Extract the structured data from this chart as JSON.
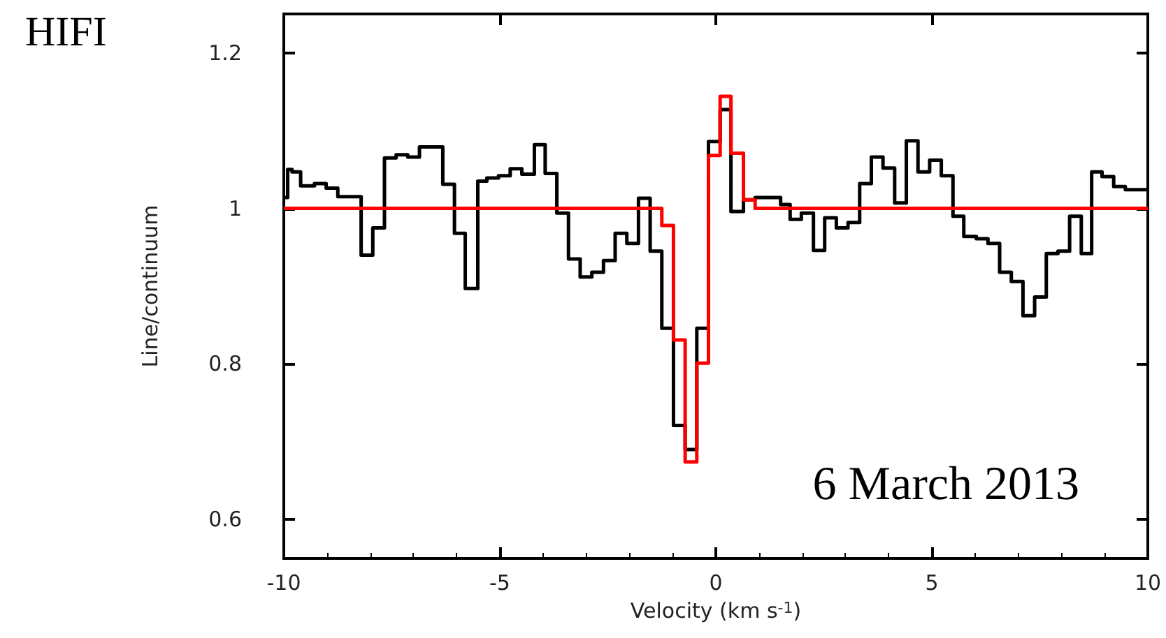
{
  "chart_data": {
    "type": "step",
    "xlabel": "Velocity (km s$^{-1}$)",
    "ylabel": "Line/continuum",
    "annotations": [
      "HIFI",
      "6 March 2013"
    ],
    "xlim": [
      -10,
      10
    ],
    "xticks": [
      -10,
      -5,
      0,
      5,
      10
    ],
    "ylim": [
      0.55,
      1.25
    ],
    "yticks": [
      0.6,
      0.8,
      1,
      1.2
    ],
    "grid": false,
    "marker": "none",
    "line_style": "solid",
    "series": [
      {
        "color": "#000000",
        "x": [
          -10,
          -9.91,
          -9.81,
          -9.61,
          -9.29,
          -9.02,
          -8.75,
          -8.21,
          -7.94,
          -7.67,
          -7.4,
          -7.13,
          -6.86,
          -6.32,
          -6.05,
          -5.8,
          -5.51,
          -5.3,
          -5.03,
          -4.76,
          -4.49,
          -4.2,
          -3.95,
          -3.68,
          -3.41,
          -3.14,
          -2.87,
          -2.6,
          -2.33,
          -2.06,
          -1.79,
          -1.52,
          -1.25,
          -0.98,
          -0.71,
          -0.44,
          -0.17,
          0.1,
          0.35,
          0.64,
          0.91,
          1.23,
          1.5,
          1.72,
          1.98,
          2.26,
          2.52,
          2.79,
          3.06,
          3.33,
          3.6,
          3.87,
          4.14,
          4.41,
          4.68,
          4.95,
          5.22,
          5.49,
          5.74,
          6.03,
          6.3,
          6.57,
          6.84,
          7.11,
          7.38,
          7.65,
          7.92,
          8.19,
          8.46,
          8.7,
          8.94,
          9.21,
          9.48,
          9.86,
          10
        ],
        "values": [
          1.014,
          1.05,
          1.047,
          1.029,
          1.032,
          1.026,
          1.015,
          0.94,
          0.975,
          1.065,
          1.069,
          1.066,
          1.079,
          1.031,
          0.968,
          0.897,
          1.035,
          1.039,
          1.042,
          1.051,
          1.044,
          1.082,
          1.045,
          0.994,
          0.935,
          0.912,
          0.918,
          0.933,
          0.968,
          0.955,
          1.013,
          0.945,
          0.846,
          0.721,
          0.69,
          0.846,
          1.086,
          1.127,
          0.996,
          1.011,
          1.014,
          1.014,
          1.005,
          0.986,
          0.994,
          0.946,
          0.988,
          0.975,
          0.982,
          1.032,
          1.066,
          1.052,
          1.007,
          1.087,
          1.047,
          1.062,
          1.042,
          0.99,
          0.964,
          0.961,
          0.955,
          0.918,
          0.906,
          0.862,
          0.886,
          0.942,
          0.945,
          0.99,
          0.942,
          1.047,
          1.041,
          1.028,
          1.024,
          1.024,
          1.024
        ]
      },
      {
        "color": "#ff0000",
        "x": [
          -10,
          -1.25,
          -0.98,
          -0.71,
          -0.44,
          -0.17,
          0.1,
          0.35,
          0.64,
          0.91,
          10
        ],
        "values": [
          1.0,
          0.978,
          0.831,
          0.674,
          0.801,
          1.068,
          1.144,
          1.071,
          1.011,
          1.0,
          1.0
        ]
      }
    ]
  }
}
